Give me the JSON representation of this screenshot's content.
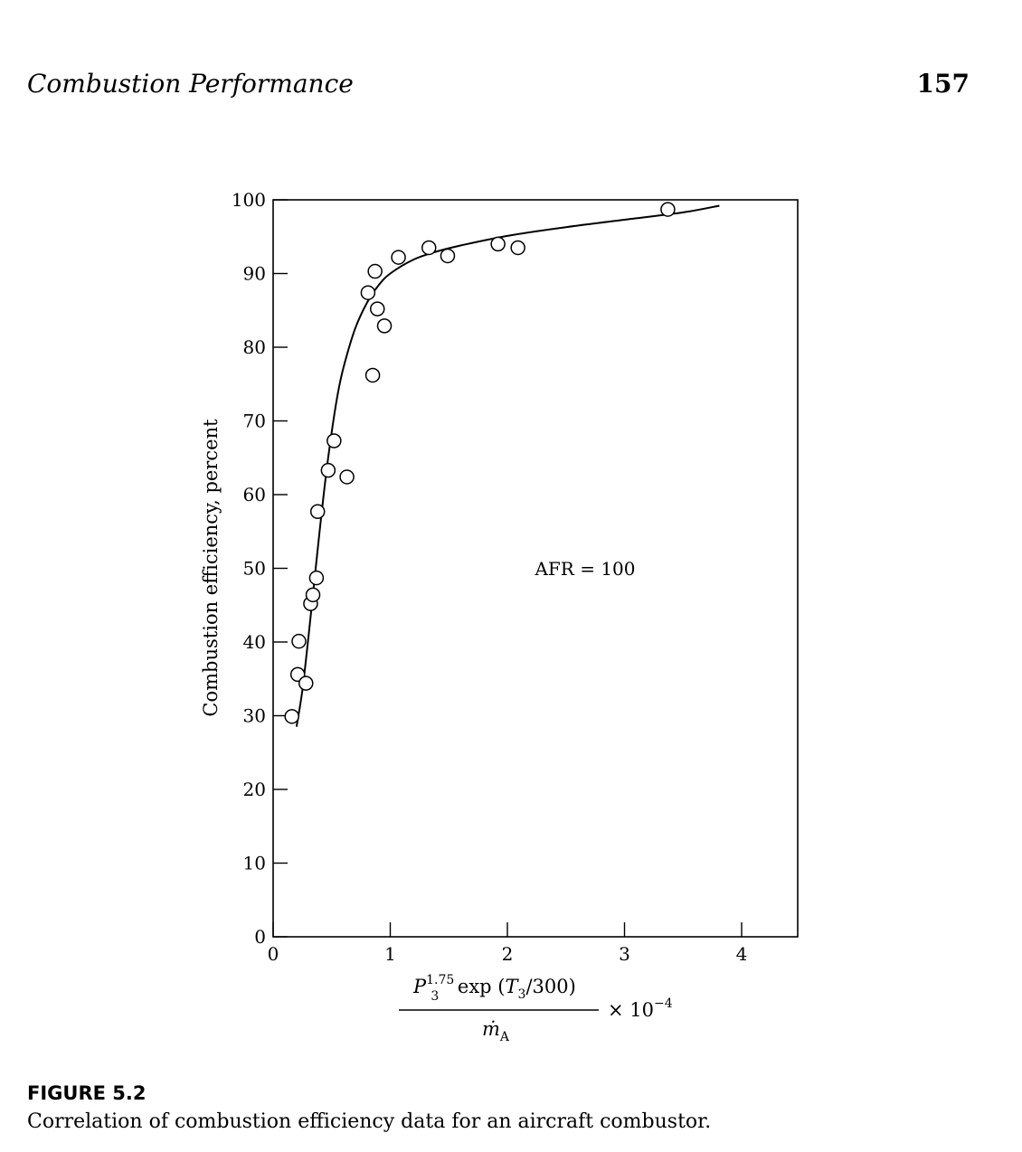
{
  "header": {
    "title": "Combustion Performance",
    "page_number": "157"
  },
  "chart_data": {
    "type": "scatter",
    "title": "",
    "xlabel_numerator_text": "exp (",
    "xlabel_numerator_parts": {
      "P_sym": "P",
      "P_sub": "3",
      "P_sup": "1.75",
      "exp_text": " exp (",
      "T_sym": "T",
      "T_sub": "3",
      "tail": "/300)"
    },
    "xlabel_denominator": {
      "m_sym": "ṁ",
      "m_sub": "A"
    },
    "xlabel_scale": "× 10",
    "xlabel_scale_exp": "−4",
    "ylabel": "Combustion efficiency, percent",
    "annotation": "AFR = 100",
    "xlim": [
      0,
      4.5
    ],
    "ylim": [
      0,
      100
    ],
    "xticks": [
      0,
      1,
      2,
      3,
      4
    ],
    "xtick_labels": [
      "0",
      "1",
      "2",
      "3",
      "4"
    ],
    "yticks": [
      0,
      10,
      20,
      30,
      40,
      50,
      60,
      70,
      80,
      90,
      100
    ],
    "ytick_labels": [
      "0",
      "10",
      "20",
      "30",
      "40",
      "50",
      "60",
      "70",
      "80",
      "90",
      "100"
    ],
    "grid": false,
    "points": [
      {
        "x": 0.16,
        "y": 29.9
      },
      {
        "x": 0.21,
        "y": 35.6
      },
      {
        "x": 0.28,
        "y": 34.4
      },
      {
        "x": 0.22,
        "y": 40.1
      },
      {
        "x": 0.32,
        "y": 45.2
      },
      {
        "x": 0.34,
        "y": 46.4
      },
      {
        "x": 0.37,
        "y": 48.7
      },
      {
        "x": 0.38,
        "y": 57.7
      },
      {
        "x": 0.47,
        "y": 63.3
      },
      {
        "x": 0.52,
        "y": 67.3
      },
      {
        "x": 0.63,
        "y": 62.4
      },
      {
        "x": 0.85,
        "y": 76.2
      },
      {
        "x": 0.95,
        "y": 82.9
      },
      {
        "x": 0.89,
        "y": 85.2
      },
      {
        "x": 0.81,
        "y": 87.4
      },
      {
        "x": 0.87,
        "y": 90.3
      },
      {
        "x": 1.07,
        "y": 92.2
      },
      {
        "x": 1.33,
        "y": 93.5
      },
      {
        "x": 1.49,
        "y": 92.4
      },
      {
        "x": 1.92,
        "y": 94.0
      },
      {
        "x": 2.09,
        "y": 93.5
      },
      {
        "x": 3.37,
        "y": 98.7
      }
    ],
    "fit_curve": {
      "x": [
        0.2,
        0.25,
        0.3,
        0.35,
        0.4,
        0.45,
        0.5,
        0.55,
        0.6,
        0.7,
        0.8,
        0.9,
        1.0,
        1.2,
        1.4,
        1.6,
        2.0,
        2.5,
        3.0,
        3.5,
        3.81
      ],
      "y": [
        28.5,
        33.5,
        40.5,
        48.0,
        55.5,
        62.5,
        68.5,
        73.5,
        77.2,
        82.5,
        86.0,
        88.4,
        90.0,
        91.9,
        93.0,
        93.8,
        95.1,
        96.3,
        97.3,
        98.3,
        99.2
      ]
    }
  },
  "figure": {
    "label": "FIGURE 5.2",
    "caption": "Correlation of combustion efficiency data for an aircraft combustor."
  }
}
